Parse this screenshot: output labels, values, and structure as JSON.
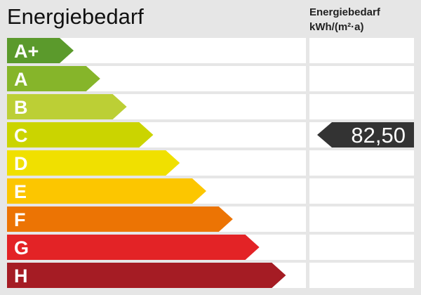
{
  "title": "Energiebedarf",
  "column_header": {
    "line1": "Energiebedarf",
    "line2": "kWh/(m²·a)"
  },
  "chart_data": {
    "type": "bar",
    "title": "Energiebedarf",
    "categories": [
      "A+",
      "A",
      "B",
      "C",
      "D",
      "E",
      "F",
      "G",
      "H"
    ],
    "colors": [
      "#5b9a2c",
      "#86b52a",
      "#bccf35",
      "#cbd400",
      "#f0e000",
      "#fcc600",
      "#ec7404",
      "#e32326",
      "#a51c24"
    ],
    "marker": {
      "category": "C",
      "value": "82,50",
      "color": "#333333"
    }
  }
}
